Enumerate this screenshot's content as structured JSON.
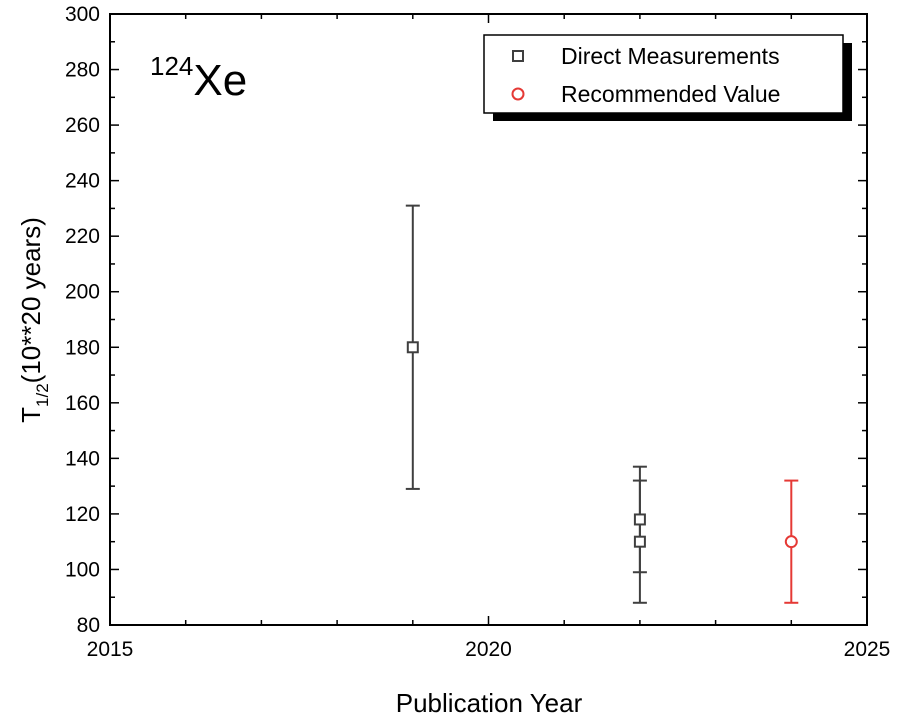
{
  "chart_data": {
    "type": "scatter",
    "xlabel": "Publication Year",
    "ylabel_main": "T",
    "ylabel_sub": "1/2",
    "ylabel_rest": "(10**20 years)",
    "annotation": {
      "mass": "124",
      "element": "Xe"
    },
    "xlim": [
      2015,
      2025
    ],
    "ylim": [
      80,
      300
    ],
    "x_ticks": [
      2015,
      2020,
      2025
    ],
    "y_ticks": [
      80,
      100,
      120,
      140,
      160,
      180,
      200,
      220,
      240,
      260,
      280,
      300
    ],
    "grid": false,
    "legend_position": "top-right",
    "series": [
      {
        "name": "Direct Measurements",
        "marker": "square",
        "color": "#3f3f3f",
        "points": [
          {
            "x": 2019,
            "y": 180,
            "err_low": 51,
            "err_high": 51
          },
          {
            "x": 2022,
            "y": 118,
            "err_low": 19,
            "err_high": 19
          },
          {
            "x": 2022,
            "y": 110,
            "err_low": 22,
            "err_high": 22
          }
        ]
      },
      {
        "name": "Recommended Value",
        "marker": "circle",
        "color": "#e53935",
        "points": [
          {
            "x": 2024,
            "y": 110,
            "err_low": 22,
            "err_high": 22
          }
        ]
      }
    ]
  }
}
